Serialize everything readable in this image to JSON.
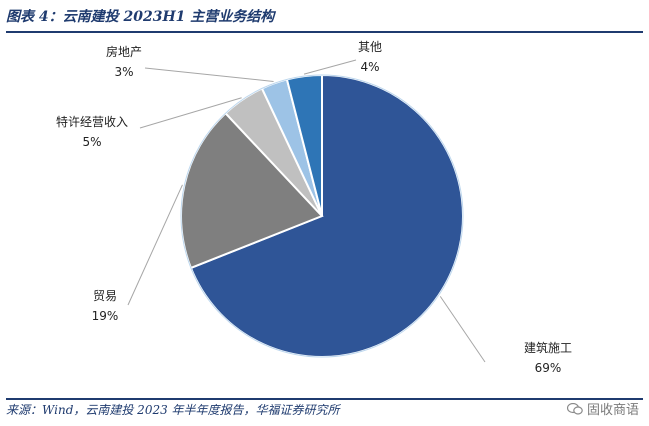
{
  "title": "图表 4：云南建投 2023H1 主营业务结构",
  "source": "来源：Wind，云南建投 2023 年半年度报告，华福证券研究所",
  "watermark": "固收商语",
  "chart_data": {
    "type": "pie",
    "title": "",
    "slices": [
      {
        "name": "建筑施工",
        "value": 69,
        "label": "69%",
        "color": "#2f5597"
      },
      {
        "name": "贸易",
        "value": 19,
        "label": "19%",
        "color": "#7f7f7f"
      },
      {
        "name": "特许经营收入",
        "value": 5,
        "label": "5%",
        "color": "#c0c0c0"
      },
      {
        "name": "房地产",
        "value": 3,
        "label": "3%",
        "color": "#9dc3e6"
      },
      {
        "name": "其他",
        "value": 4,
        "label": "4%",
        "color": "#2e75b6"
      }
    ],
    "legend": "none",
    "start_angle_deg": 0,
    "direction": "clockwise"
  }
}
